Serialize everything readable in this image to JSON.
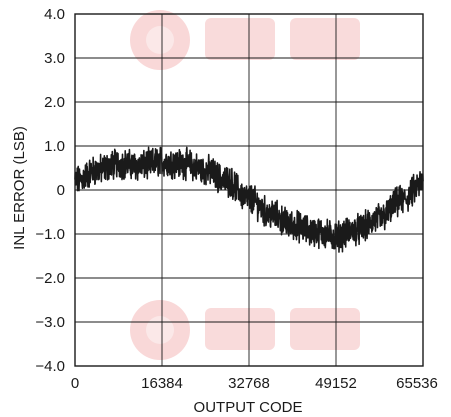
{
  "chart_data": {
    "type": "line",
    "title": "",
    "xlabel": "OUTPUT CODE",
    "ylabel": "INL ERROR (LSB)",
    "xlim": [
      0,
      65536
    ],
    "ylim": [
      -4.0,
      4.0
    ],
    "x_ticks": [
      0,
      16384,
      32768,
      49152,
      65536
    ],
    "x_tick_labels": [
      "0",
      "16384",
      "32768",
      "49152",
      "65536"
    ],
    "y_ticks": [
      4.0,
      3.0,
      2.0,
      1.0,
      0,
      -1.0,
      -2.0,
      -3.0,
      -4.0
    ],
    "y_tick_labels": [
      "4.0",
      "3.0",
      "2.0",
      "1.0",
      "0",
      "−1.0",
      "−2.0",
      "−3.0",
      "−4.0"
    ],
    "grid": true,
    "series": [
      {
        "color": "#1a1a1a",
        "x": [
          0,
          4096,
          8192,
          12288,
          16384,
          20480,
          24576,
          28672,
          32768,
          36864,
          40960,
          45056,
          49152,
          53248,
          57344,
          61440,
          65536
        ],
        "y": [
          0.2,
          0.45,
          0.6,
          0.55,
          0.65,
          0.6,
          0.45,
          0.2,
          -0.2,
          -0.55,
          -0.8,
          -0.95,
          -1.05,
          -0.9,
          -0.65,
          -0.25,
          0.15
        ]
      }
    ]
  },
  "watermark": {
    "color": "#f7c9c9"
  }
}
